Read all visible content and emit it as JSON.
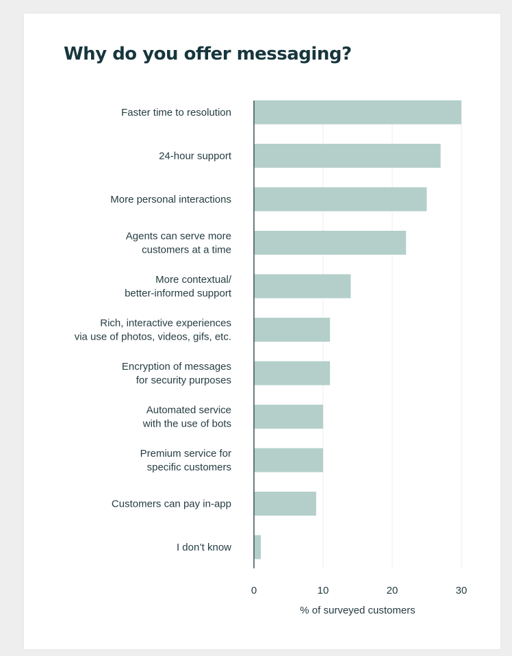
{
  "chart_data": {
    "type": "bar",
    "orientation": "horizontal",
    "title": "Why do you offer messaging?",
    "xlabel": "% of surveyed customers",
    "ylabel": "",
    "xlim": [
      0,
      30
    ],
    "xticks": [
      "0",
      "10",
      "20",
      "30"
    ],
    "grid": true,
    "bar_color": "#b4cfca",
    "categories": [
      [
        "Faster time to resolution"
      ],
      [
        "24-hour support"
      ],
      [
        "More personal interactions"
      ],
      [
        "Agents can serve more",
        "customers at a time"
      ],
      [
        "More contextual/",
        "better-informed support"
      ],
      [
        "Rich, interactive experiences",
        "via use of photos, videos, gifs, etc."
      ],
      [
        "Encryption of messages",
        "for security purposes"
      ],
      [
        "Automated service",
        "with the use of bots"
      ],
      [
        "Premium service for",
        "specific customers"
      ],
      [
        "Customers can pay in-app"
      ],
      [
        "I don’t know"
      ]
    ],
    "values": [
      30,
      27,
      25,
      22,
      14,
      11,
      11,
      10,
      10,
      9,
      1
    ]
  }
}
